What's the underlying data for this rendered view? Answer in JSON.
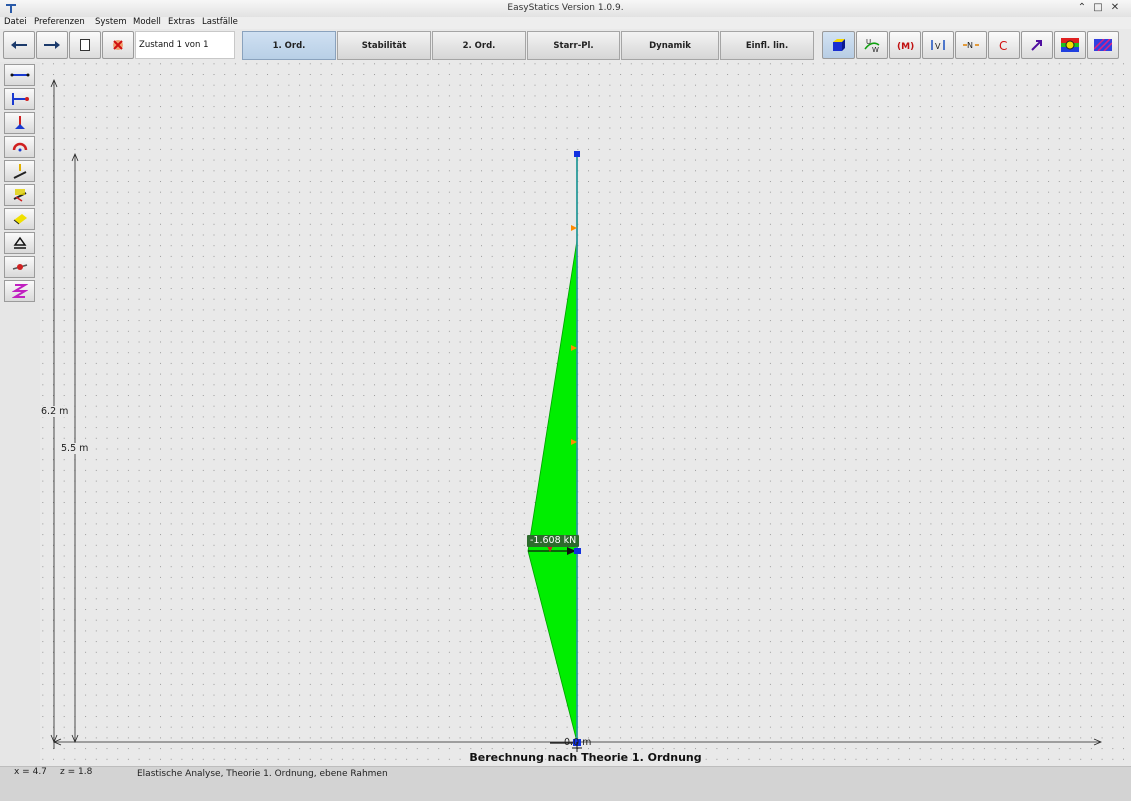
{
  "window": {
    "title": "EasyStatics Version 1.0.9.",
    "controls": {
      "minimize": "⌃",
      "restore": "□",
      "close": "✕"
    }
  },
  "menu": [
    "Datei",
    "Preferenzen",
    "System",
    "Modell",
    "Extras",
    "Lastfälle"
  ],
  "toolbar": {
    "nav_buttons": [
      "arrow-left-icon",
      "arrow-right-icon",
      "new-document-icon",
      "delete-state-icon"
    ],
    "state_label": "Zustand 1 von  1",
    "mode_tabs": [
      {
        "label": "1. Ord.",
        "active": true
      },
      {
        "label": "Stabilität",
        "active": false
      },
      {
        "label": "2. Ord.",
        "active": false
      },
      {
        "label": "Starr-Pl.",
        "active": false
      },
      {
        "label": "Dynamik",
        "active": false
      },
      {
        "label": "Einfl. lin.",
        "active": false
      }
    ],
    "result_buttons": [
      "cube-icon",
      "uw-displacement-icon",
      "moment-icon",
      "shear-icon",
      "normal-force-icon",
      "reaction-icon",
      "arrow-icon",
      "stress-icon",
      "pattern-icon"
    ],
    "result_labels": {
      "uw_u": "U",
      "uw_w": "W",
      "moment": "(M)",
      "shear": "V",
      "normal": "N",
      "reaction": "C"
    }
  },
  "left_tools": [
    "bar-tool-icon",
    "bar-hinge-tool-icon",
    "support-tool-icon",
    "rotation-tool-icon",
    "point-load-tool-icon",
    "distributed-load-tool-icon",
    "area-load-tool-icon",
    "bearing-tool-icon",
    "node-tool-icon",
    "spring-tool-icon"
  ],
  "canvas": {
    "dim_outer": "6.2 m",
    "dim_inner": "5.5 m",
    "load_label": "-1.608 kN",
    "zero_label": "0.0 m",
    "title": "Berechnung nach Theorie 1. Ordnung"
  },
  "status": {
    "x_label": "x = 4.7",
    "z_label": "z = 1.8",
    "analysis": "Elastische Analyse, Theorie 1. Ordnung, ebene Rahmen"
  },
  "colors": {
    "diagram_fill": "#00ee00",
    "member": "#2a9a9a",
    "node": "#1030e0",
    "load_marker": "#ff8c00",
    "active_tab": "#c3d7ec"
  }
}
